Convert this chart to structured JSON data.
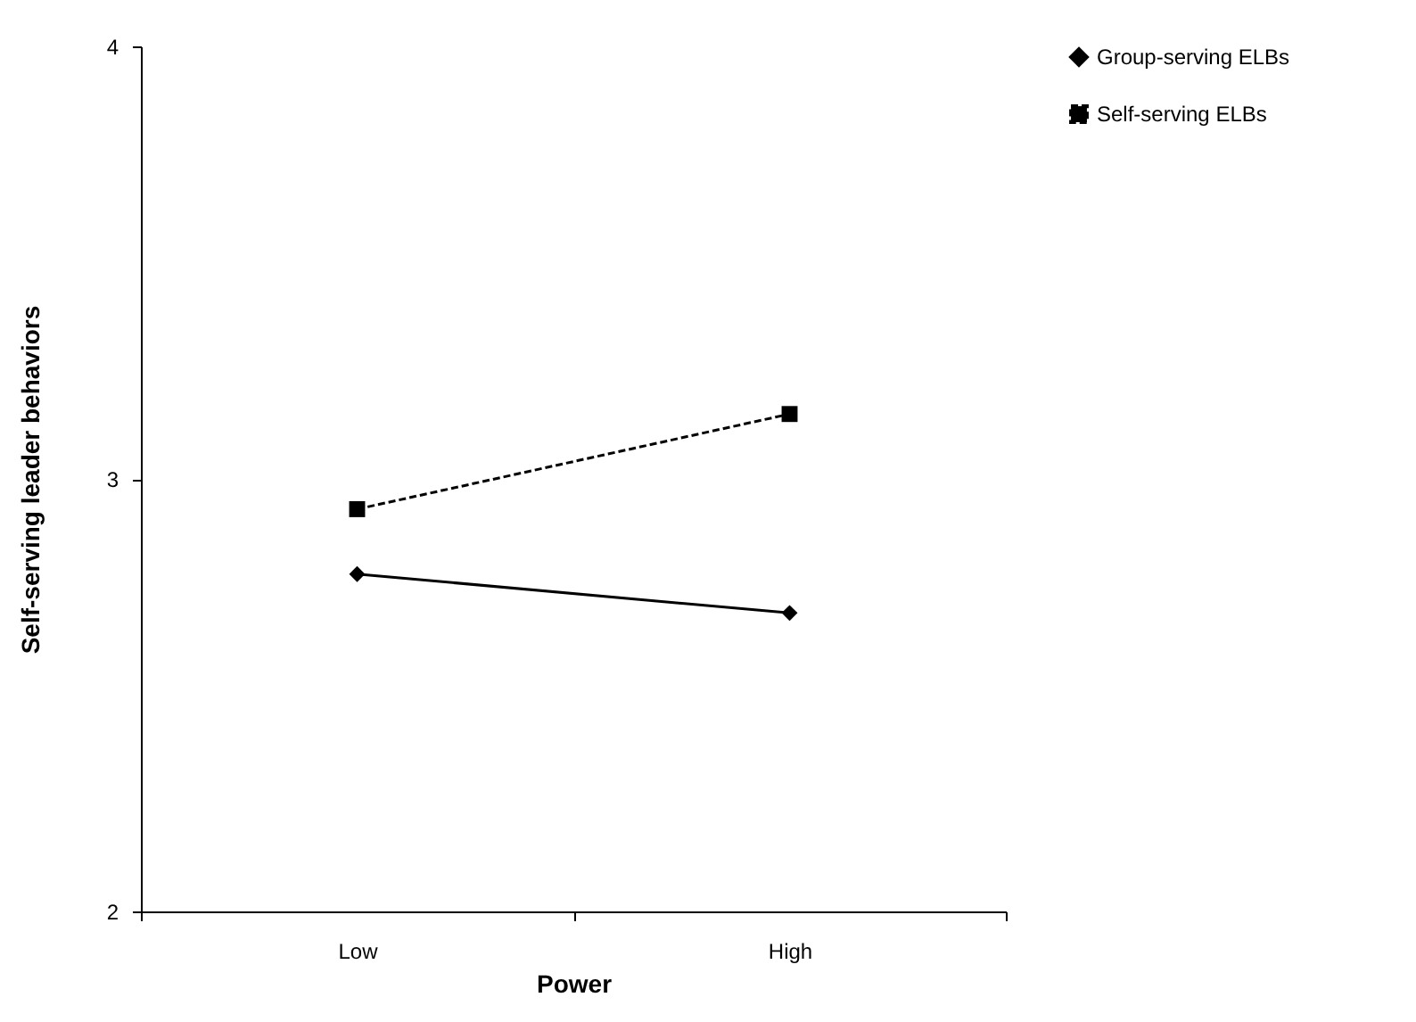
{
  "chart_data": {
    "type": "line",
    "xlabel": "Power",
    "ylabel": "Self-serving leader behaviors",
    "categories": [
      "Low",
      "High"
    ],
    "series": [
      {
        "name": "Group-serving ELBs",
        "color": "#000000",
        "values": [
          2.78,
          2.69
        ],
        "marker": "diamond",
        "line_style": "solid"
      },
      {
        "name": "Self-serving ELBs",
        "color": "#000000",
        "values": [
          2.93,
          3.15
        ],
        "marker": "square",
        "line_style": "dashed"
      }
    ],
    "ylim": [
      2,
      4
    ],
    "yticks": [
      2,
      3,
      4
    ],
    "grid": false,
    "legend": "top right"
  }
}
